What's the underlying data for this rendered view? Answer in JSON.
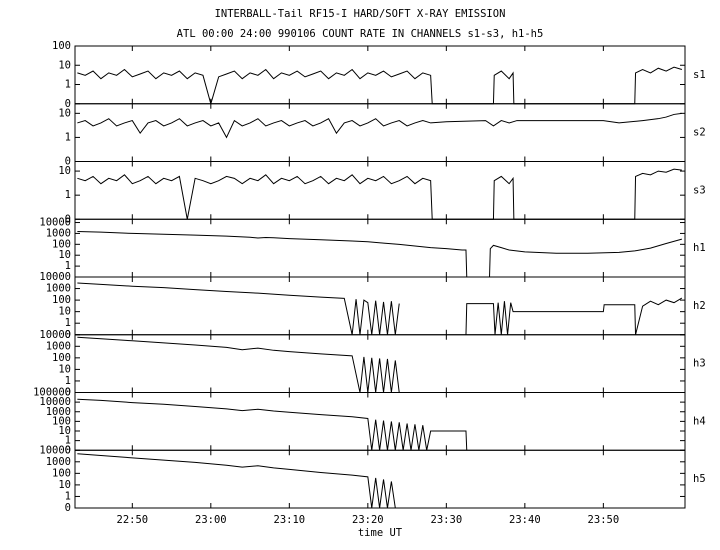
{
  "header": {
    "title": "INTERBALL-Tail RF15-I HARD/SOFT X-RAY EMISSION",
    "subtitle": "ATL 00:00 24:00 990106  COUNT RATE IN CHANNELS s1-s3, h1-h5"
  },
  "time_axis": {
    "label": "time UT",
    "xlim": [
      42.7,
      120.4
    ],
    "xticks": [
      {
        "value": 50,
        "label": "22:50"
      },
      {
        "value": 60,
        "label": "23:00"
      },
      {
        "value": 70,
        "label": "23:10"
      },
      {
        "value": 80,
        "label": "23:20"
      },
      {
        "value": 90,
        "label": "23:30"
      },
      {
        "value": 100,
        "label": "23:40"
      },
      {
        "value": 110,
        "label": "23:50"
      }
    ]
  },
  "chart_data": [
    {
      "type": "line",
      "name": "s1",
      "yscale": "log",
      "color": "#000000",
      "ylim": [
        0,
        100
      ],
      "yticks": [
        0,
        1,
        10,
        100
      ],
      "x": [
        43,
        44,
        45,
        46,
        47,
        48,
        49,
        50,
        51,
        52,
        53,
        54,
        55,
        56,
        57,
        58,
        59,
        60,
        61,
        62,
        63,
        64,
        65,
        66,
        67,
        68,
        69,
        70,
        71,
        72,
        73,
        74,
        75,
        76,
        77,
        78,
        79,
        80,
        81,
        82,
        83,
        84,
        85,
        86,
        87,
        88,
        88.2,
        96,
        96.1,
        97,
        98,
        98.5,
        98.6,
        114,
        114.1,
        115,
        116,
        117,
        118,
        119,
        120
      ],
      "values": [
        4,
        3,
        5,
        2,
        4,
        3,
        6,
        2.5,
        3.5,
        5,
        2,
        4,
        3,
        5,
        2,
        4,
        3,
        0,
        2.5,
        3.5,
        5,
        2,
        4,
        3,
        6,
        2,
        4,
        3,
        5,
        2.5,
        3.5,
        5,
        2,
        4,
        3,
        6,
        2,
        4,
        3,
        5,
        2.5,
        3.5,
        5,
        2,
        4,
        3,
        0,
        0,
        3,
        5,
        2,
        4,
        0,
        0,
        4,
        6,
        4,
        7,
        5,
        8,
        6
      ]
    },
    {
      "type": "line",
      "name": "s2",
      "yscale": "log",
      "color": "#000000",
      "ylim": [
        0,
        25
      ],
      "yticks": [
        0,
        1,
        10
      ],
      "x": [
        43,
        44,
        45,
        46,
        47,
        48,
        49,
        50,
        51,
        52,
        53,
        54,
        55,
        56,
        57,
        58,
        59,
        60,
        61,
        62,
        63,
        64,
        65,
        66,
        67,
        68,
        69,
        70,
        71,
        72,
        73,
        74,
        75,
        76,
        77,
        78,
        79,
        80,
        81,
        82,
        83,
        84,
        85,
        86,
        87,
        88,
        90,
        95,
        96,
        97,
        98,
        99,
        105,
        110,
        112,
        115,
        117,
        118,
        119,
        120
      ],
      "values": [
        4,
        5,
        3,
        4,
        6,
        3,
        4,
        5,
        1.5,
        4,
        5,
        3,
        4,
        6,
        3,
        4,
        5,
        3,
        4,
        1,
        5,
        3,
        4,
        6,
        3,
        4,
        5,
        3,
        4,
        5,
        3,
        4,
        6,
        1.5,
        4,
        5,
        3,
        4,
        6,
        3,
        4,
        5,
        3,
        4,
        5,
        4,
        4.5,
        5,
        3,
        5,
        4,
        5,
        5,
        5,
        4,
        5,
        6,
        7,
        9,
        10
      ]
    },
    {
      "type": "line",
      "name": "s3",
      "yscale": "log",
      "color": "#000000",
      "ylim": [
        0,
        25
      ],
      "yticks": [
        0,
        1,
        10
      ],
      "x": [
        43,
        44,
        45,
        46,
        47,
        48,
        49,
        50,
        51,
        52,
        53,
        54,
        55,
        56,
        57,
        58,
        59,
        60,
        61,
        62,
        63,
        64,
        65,
        66,
        67,
        68,
        69,
        70,
        71,
        72,
        73,
        74,
        75,
        76,
        77,
        78,
        79,
        80,
        81,
        82,
        83,
        84,
        85,
        86,
        87,
        88,
        88.2,
        96,
        96.1,
        97,
        98,
        98.5,
        98.6,
        114,
        114.1,
        115,
        116,
        117,
        118,
        119,
        120
      ],
      "values": [
        5,
        4,
        6,
        3,
        5,
        4,
        7,
        3,
        4,
        6,
        3,
        5,
        4,
        6,
        0,
        5,
        4,
        3,
        4,
        6,
        5,
        3,
        5,
        4,
        7,
        3,
        5,
        4,
        6,
        3,
        4,
        6,
        3,
        5,
        4,
        7,
        3,
        5,
        4,
        6,
        3,
        4,
        6,
        3,
        5,
        4,
        0,
        0,
        4,
        6,
        3,
        5,
        0,
        0,
        6,
        8,
        7,
        10,
        9,
        12,
        11
      ]
    },
    {
      "type": "line",
      "name": "h1",
      "yscale": "log",
      "color": "#000000",
      "ylim": [
        0,
        20000
      ],
      "yticks": [
        1,
        10,
        100,
        1000,
        10000
      ],
      "x": [
        43,
        46,
        50,
        54,
        58,
        62,
        65,
        66,
        67,
        68,
        70,
        74,
        78,
        80,
        82,
        84,
        86,
        88,
        90,
        92,
        92.5,
        92.6,
        95.5,
        95.6,
        96,
        97,
        98,
        100,
        104,
        108,
        112,
        114,
        116,
        118,
        120
      ],
      "values": [
        1500,
        1300,
        1000,
        850,
        700,
        560,
        450,
        380,
        420,
        400,
        330,
        260,
        200,
        170,
        130,
        100,
        70,
        50,
        40,
        30,
        30,
        0,
        0,
        40,
        80,
        50,
        30,
        20,
        15,
        15,
        18,
        25,
        45,
        120,
        300
      ]
    },
    {
      "type": "line",
      "name": "h2",
      "yscale": "log",
      "color": "#000000",
      "ylim": [
        0,
        10000
      ],
      "yticks": [
        0,
        1,
        10,
        100,
        1000,
        10000
      ],
      "x": [
        43,
        46,
        50,
        54,
        58,
        62,
        66,
        70,
        74,
        77,
        78,
        78.5,
        79,
        79.5,
        80,
        80.5,
        81,
        81.5,
        82,
        82.5,
        83,
        83.5,
        84,
        88,
        92.5,
        92.6,
        96,
        96.2,
        96.6,
        97,
        97.4,
        97.8,
        98.2,
        98.5,
        110,
        110.1,
        114,
        114.1,
        115,
        116,
        117,
        118,
        119,
        120
      ],
      "values": [
        3000,
        2300,
        1600,
        1200,
        800,
        550,
        400,
        260,
        180,
        140,
        0,
        120,
        0,
        100,
        60,
        0,
        90,
        0,
        70,
        0,
        80,
        0,
        50,
        null,
        0,
        50,
        50,
        0,
        60,
        0,
        80,
        0,
        60,
        10,
        10,
        40,
        40,
        0,
        30,
        80,
        40,
        100,
        60,
        150
      ]
    },
    {
      "type": "line",
      "name": "h3",
      "yscale": "log",
      "color": "#000000",
      "ylim": [
        0,
        10000
      ],
      "yticks": [
        0,
        1,
        10,
        100,
        1000,
        10000
      ],
      "x": [
        43,
        46,
        50,
        54,
        58,
        62,
        64,
        66,
        68,
        70,
        74,
        78,
        79,
        79.5,
        80,
        80.5,
        81,
        81.5,
        82,
        82.5,
        83,
        83.5,
        84
      ],
      "values": [
        6000,
        4500,
        3000,
        2000,
        1300,
        800,
        500,
        700,
        450,
        350,
        220,
        150,
        0,
        120,
        0,
        100,
        0,
        90,
        0,
        80,
        0,
        60,
        0
      ]
    },
    {
      "type": "line",
      "name": "h4",
      "yscale": "log",
      "color": "#000000",
      "ylim": [
        0,
        100000
      ],
      "yticks": [
        0,
        1,
        10,
        100,
        1000,
        10000,
        100000
      ],
      "x": [
        43,
        46,
        50,
        54,
        58,
        62,
        64,
        66,
        68,
        70,
        74,
        78,
        80,
        80.5,
        81,
        81.5,
        82,
        82.5,
        83,
        83.5,
        84,
        84.5,
        85,
        85.5,
        86,
        86.5,
        87,
        87.5,
        88,
        92.5,
        92.6
      ],
      "values": [
        20000,
        15000,
        9000,
        6000,
        3500,
        2000,
        1300,
        1800,
        1200,
        900,
        500,
        300,
        200,
        0,
        150,
        0,
        120,
        0,
        100,
        0,
        80,
        0,
        60,
        0,
        50,
        0,
        40,
        0,
        10,
        10,
        0
      ]
    },
    {
      "type": "line",
      "name": "h5",
      "yscale": "log",
      "color": "#000000",
      "ylim": [
        0,
        10000
      ],
      "yticks": [
        0,
        1,
        10,
        100,
        1000,
        10000
      ],
      "x": [
        43,
        46,
        50,
        54,
        58,
        62,
        64,
        66,
        68,
        70,
        74,
        78,
        80,
        80.5,
        81,
        81.5,
        82,
        82.5,
        83,
        83.5
      ],
      "values": [
        5000,
        3500,
        2200,
        1400,
        900,
        500,
        350,
        450,
        300,
        220,
        120,
        70,
        50,
        0,
        40,
        0,
        30,
        0,
        20,
        0
      ]
    }
  ]
}
